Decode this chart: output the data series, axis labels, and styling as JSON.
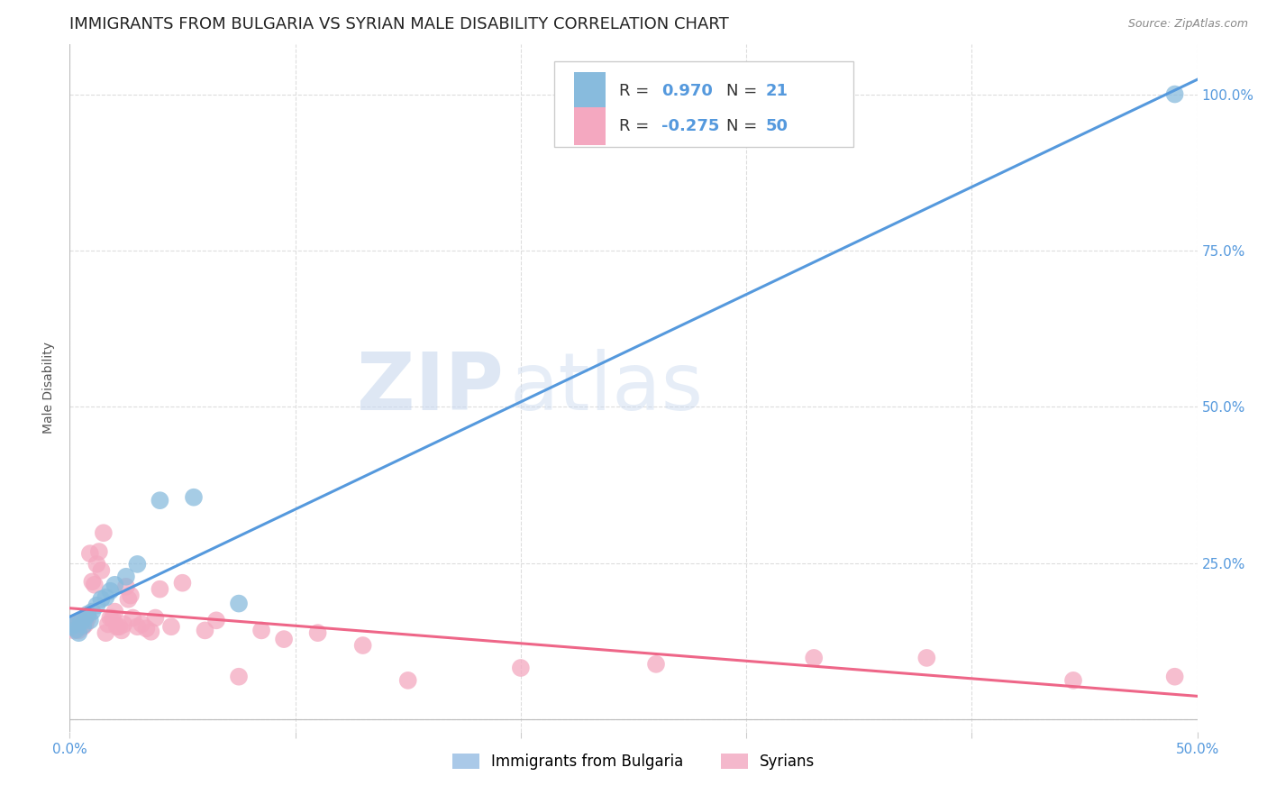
{
  "title": "IMMIGRANTS FROM BULGARIA VS SYRIAN MALE DISABILITY CORRELATION CHART",
  "source": "Source: ZipAtlas.com",
  "ylabel": "Male Disability",
  "xlim": [
    0.0,
    0.5
  ],
  "ylim": [
    -0.02,
    1.08
  ],
  "x_ticks": [
    0.0,
    0.1,
    0.2,
    0.3,
    0.4,
    0.5
  ],
  "x_tick_labels": [
    "0.0%",
    "",
    "",
    "",
    "",
    "50.0%"
  ],
  "y_ticks": [
    0.0,
    0.25,
    0.5,
    0.75,
    1.0
  ],
  "y_tick_labels": [
    "",
    "25.0%",
    "50.0%",
    "75.0%",
    "100.0%"
  ],
  "watermark_zip": "ZIP",
  "watermark_atlas": "atlas",
  "legend_r1": "R = ",
  "legend_v1": "0.970",
  "legend_n1_label": "N = ",
  "legend_n1_val": "21",
  "legend_r2": "R = ",
  "legend_v2": "-0.275",
  "legend_n2_label": "N = ",
  "legend_n2_val": "50",
  "bottom_legend": [
    {
      "label": "Immigrants from Bulgaria",
      "color": "#aac9e8"
    },
    {
      "label": "Syrians",
      "color": "#f4b8cc"
    }
  ],
  "bulgaria_scatter": [
    [
      0.001,
      0.148
    ],
    [
      0.002,
      0.152
    ],
    [
      0.003,
      0.143
    ],
    [
      0.004,
      0.138
    ],
    [
      0.005,
      0.155
    ],
    [
      0.006,
      0.15
    ],
    [
      0.007,
      0.162
    ],
    [
      0.008,
      0.168
    ],
    [
      0.009,
      0.158
    ],
    [
      0.01,
      0.172
    ],
    [
      0.012,
      0.182
    ],
    [
      0.014,
      0.192
    ],
    [
      0.016,
      0.195
    ],
    [
      0.018,
      0.205
    ],
    [
      0.02,
      0.215
    ],
    [
      0.025,
      0.228
    ],
    [
      0.03,
      0.248
    ],
    [
      0.04,
      0.35
    ],
    [
      0.055,
      0.355
    ],
    [
      0.075,
      0.185
    ],
    [
      0.49,
      1.0
    ]
  ],
  "syrian_scatter": [
    [
      0.001,
      0.148
    ],
    [
      0.002,
      0.142
    ],
    [
      0.003,
      0.152
    ],
    [
      0.004,
      0.142
    ],
    [
      0.005,
      0.158
    ],
    [
      0.006,
      0.148
    ],
    [
      0.007,
      0.152
    ],
    [
      0.008,
      0.162
    ],
    [
      0.009,
      0.265
    ],
    [
      0.01,
      0.22
    ],
    [
      0.011,
      0.215
    ],
    [
      0.012,
      0.248
    ],
    [
      0.013,
      0.268
    ],
    [
      0.014,
      0.238
    ],
    [
      0.015,
      0.298
    ],
    [
      0.016,
      0.138
    ],
    [
      0.017,
      0.152
    ],
    [
      0.018,
      0.162
    ],
    [
      0.019,
      0.162
    ],
    [
      0.02,
      0.172
    ],
    [
      0.021,
      0.148
    ],
    [
      0.022,
      0.148
    ],
    [
      0.023,
      0.142
    ],
    [
      0.024,
      0.152
    ],
    [
      0.025,
      0.212
    ],
    [
      0.026,
      0.192
    ],
    [
      0.027,
      0.198
    ],
    [
      0.028,
      0.162
    ],
    [
      0.03,
      0.148
    ],
    [
      0.032,
      0.152
    ],
    [
      0.034,
      0.145
    ],
    [
      0.036,
      0.14
    ],
    [
      0.038,
      0.162
    ],
    [
      0.04,
      0.208
    ],
    [
      0.045,
      0.148
    ],
    [
      0.05,
      0.218
    ],
    [
      0.06,
      0.142
    ],
    [
      0.065,
      0.158
    ],
    [
      0.075,
      0.068
    ],
    [
      0.085,
      0.142
    ],
    [
      0.095,
      0.128
    ],
    [
      0.11,
      0.138
    ],
    [
      0.13,
      0.118
    ],
    [
      0.15,
      0.062
    ],
    [
      0.2,
      0.082
    ],
    [
      0.26,
      0.088
    ],
    [
      0.33,
      0.098
    ],
    [
      0.38,
      0.098
    ],
    [
      0.445,
      0.062
    ],
    [
      0.49,
      0.068
    ]
  ],
  "bulgaria_line_color": "#5599dd",
  "syrian_line_color": "#ee6688",
  "scatter_blue": "#88bbdd",
  "scatter_pink": "#f4a8c0",
  "background_color": "#ffffff",
  "grid_color": "#dddddd",
  "title_fontsize": 13,
  "axis_label_fontsize": 10,
  "tick_fontsize": 11,
  "tick_color": "#5599dd",
  "legend_val_color": "#5599dd",
  "legend_label_color": "#333333"
}
